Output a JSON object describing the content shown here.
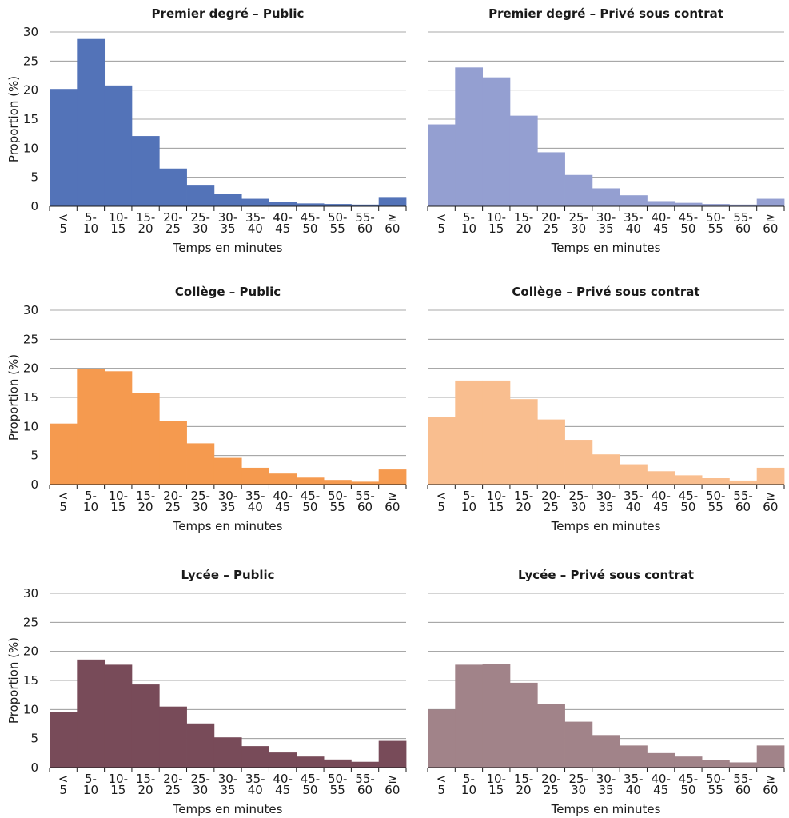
{
  "chart_data": [
    {
      "type": "bar",
      "title": "Premier degré – Public",
      "xlabel": "Temps en minutes",
      "ylabel": "Proportion (%)",
      "ylim": [
        0,
        30
      ],
      "yticks": [
        0,
        5,
        10,
        15,
        20,
        25,
        30
      ],
      "grid": true,
      "color": "#5373b8",
      "categories": [
        [
          "<",
          "5"
        ],
        [
          "5-",
          "10"
        ],
        [
          "10-",
          "15"
        ],
        [
          "15-",
          "20"
        ],
        [
          "20-",
          "25"
        ],
        [
          "25-",
          "30"
        ],
        [
          "30-",
          "35"
        ],
        [
          "35-",
          "40"
        ],
        [
          "40-",
          "45"
        ],
        [
          "45-",
          "50"
        ],
        [
          "50-",
          "55"
        ],
        [
          "55-",
          "60"
        ],
        [
          "≥",
          "60"
        ]
      ],
      "values": [
        20.2,
        28.8,
        20.8,
        12.1,
        6.5,
        3.7,
        2.2,
        1.3,
        0.8,
        0.5,
        0.4,
        0.3,
        1.6
      ]
    },
    {
      "type": "bar",
      "title": "Premier degré – Privé sous contrat",
      "xlabel": "Temps en minutes",
      "ylabel": "",
      "ylim": [
        0,
        30
      ],
      "yticks": [
        0,
        5,
        10,
        15,
        20,
        25,
        30
      ],
      "grid": true,
      "color": "#949fd1",
      "categories": [
        [
          "<",
          "5"
        ],
        [
          "5-",
          "10"
        ],
        [
          "10-",
          "15"
        ],
        [
          "15-",
          "20"
        ],
        [
          "20-",
          "25"
        ],
        [
          "25-",
          "30"
        ],
        [
          "30-",
          "35"
        ],
        [
          "35-",
          "40"
        ],
        [
          "40-",
          "45"
        ],
        [
          "45-",
          "50"
        ],
        [
          "50-",
          "55"
        ],
        [
          "55-",
          "60"
        ],
        [
          "≥",
          "60"
        ]
      ],
      "values": [
        14.1,
        23.9,
        22.2,
        15.6,
        9.3,
        5.4,
        3.1,
        1.9,
        0.9,
        0.6,
        0.4,
        0.3,
        1.3
      ]
    },
    {
      "type": "bar",
      "title": "Collège – Public",
      "xlabel": "Temps en minutes",
      "ylabel": "Proportion (%)",
      "ylim": [
        0,
        30
      ],
      "yticks": [
        0,
        5,
        10,
        15,
        20,
        25,
        30
      ],
      "grid": true,
      "color": "#f59a4f",
      "categories": [
        [
          "<",
          "5"
        ],
        [
          "5-",
          "10"
        ],
        [
          "10-",
          "15"
        ],
        [
          "15-",
          "20"
        ],
        [
          "20-",
          "25"
        ],
        [
          "25-",
          "30"
        ],
        [
          "30-",
          "35"
        ],
        [
          "35-",
          "40"
        ],
        [
          "40-",
          "45"
        ],
        [
          "45-",
          "50"
        ],
        [
          "50-",
          "55"
        ],
        [
          "55-",
          "60"
        ],
        [
          "≥",
          "60"
        ]
      ],
      "values": [
        10.5,
        19.9,
        19.5,
        15.8,
        11.0,
        7.1,
        4.6,
        2.9,
        1.9,
        1.2,
        0.8,
        0.5,
        2.6
      ]
    },
    {
      "type": "bar",
      "title": "Collège – Privé sous contrat",
      "xlabel": "Temps en minutes",
      "ylabel": "",
      "ylim": [
        0,
        30
      ],
      "yticks": [
        0,
        5,
        10,
        15,
        20,
        25,
        30
      ],
      "grid": true,
      "color": "#f9be8f",
      "categories": [
        [
          "<",
          "5"
        ],
        [
          "5-",
          "10"
        ],
        [
          "10-",
          "15"
        ],
        [
          "15-",
          "20"
        ],
        [
          "20-",
          "25"
        ],
        [
          "25-",
          "30"
        ],
        [
          "30-",
          "35"
        ],
        [
          "35-",
          "40"
        ],
        [
          "40-",
          "45"
        ],
        [
          "45-",
          "50"
        ],
        [
          "50-",
          "55"
        ],
        [
          "55-",
          "60"
        ],
        [
          "≥",
          "60"
        ]
      ],
      "values": [
        11.6,
        17.9,
        17.9,
        14.7,
        11.2,
        7.7,
        5.2,
        3.5,
        2.3,
        1.6,
        1.1,
        0.7,
        2.9
      ]
    },
    {
      "type": "bar",
      "title": "Lycée – Public",
      "xlabel": "Temps en minutes",
      "ylabel": "Proportion (%)",
      "ylim": [
        0,
        30
      ],
      "yticks": [
        0,
        5,
        10,
        15,
        20,
        25,
        30
      ],
      "grid": true,
      "color": "#784b59",
      "categories": [
        [
          "<",
          "5"
        ],
        [
          "5-",
          "10"
        ],
        [
          "10-",
          "15"
        ],
        [
          "15-",
          "20"
        ],
        [
          "20-",
          "25"
        ],
        [
          "25-",
          "30"
        ],
        [
          "30-",
          "35"
        ],
        [
          "35-",
          "40"
        ],
        [
          "40-",
          "45"
        ],
        [
          "45-",
          "50"
        ],
        [
          "50-",
          "55"
        ],
        [
          "55-",
          "60"
        ],
        [
          "≥",
          "60"
        ]
      ],
      "values": [
        9.6,
        18.6,
        17.7,
        14.3,
        10.5,
        7.6,
        5.2,
        3.7,
        2.6,
        1.9,
        1.4,
        1.0,
        4.6
      ]
    },
    {
      "type": "bar",
      "title": "Lycée – Privé sous contrat",
      "xlabel": "Temps en minutes",
      "ylabel": "",
      "ylim": [
        0,
        30
      ],
      "yticks": [
        0,
        5,
        10,
        15,
        20,
        25,
        30
      ],
      "grid": true,
      "color": "#a18389",
      "categories": [
        [
          "<",
          "5"
        ],
        [
          "5-",
          "10"
        ],
        [
          "10-",
          "15"
        ],
        [
          "15-",
          "20"
        ],
        [
          "20-",
          "25"
        ],
        [
          "25-",
          "30"
        ],
        [
          "30-",
          "35"
        ],
        [
          "35-",
          "40"
        ],
        [
          "40-",
          "45"
        ],
        [
          "45-",
          "50"
        ],
        [
          "50-",
          "55"
        ],
        [
          "55-",
          "60"
        ],
        [
          "≥",
          "60"
        ]
      ],
      "values": [
        10.0,
        17.7,
        17.8,
        14.6,
        10.9,
        7.9,
        5.6,
        3.8,
        2.5,
        1.9,
        1.3,
        0.9,
        3.8
      ]
    }
  ]
}
